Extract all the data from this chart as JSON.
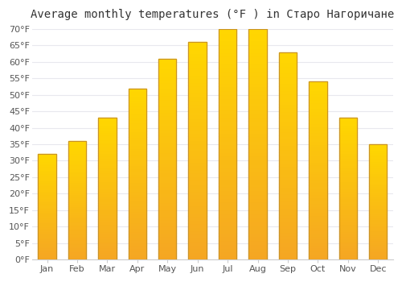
{
  "title": "Average monthly temperatures (°F ) in Старо Нагоричане",
  "months": [
    "Jan",
    "Feb",
    "Mar",
    "Apr",
    "May",
    "Jun",
    "Jul",
    "Aug",
    "Sep",
    "Oct",
    "Nov",
    "Dec"
  ],
  "values": [
    32,
    36,
    43,
    52,
    61,
    66,
    70,
    70,
    63,
    54,
    43,
    35
  ],
  "bar_color_bottom": "#F5A623",
  "bar_color_top": "#FFD700",
  "bar_edge_color": "#C8922A",
  "bar_linewidth": 0.8,
  "background_color": "#ffffff",
  "plot_bg_color": "#ffffff",
  "grid_color": "#e8e8ee",
  "ylim": [
    0,
    70
  ],
  "yticks": [
    0,
    5,
    10,
    15,
    20,
    25,
    30,
    35,
    40,
    45,
    50,
    55,
    60,
    65,
    70
  ],
  "ytick_labels": [
    "0°F",
    "5°F",
    "10°F",
    "15°F",
    "20°F",
    "25°F",
    "30°F",
    "35°F",
    "40°F",
    "45°F",
    "50°F",
    "55°F",
    "60°F",
    "65°F",
    "70°F"
  ],
  "title_fontsize": 10,
  "tick_fontsize": 8,
  "bar_width": 0.6
}
